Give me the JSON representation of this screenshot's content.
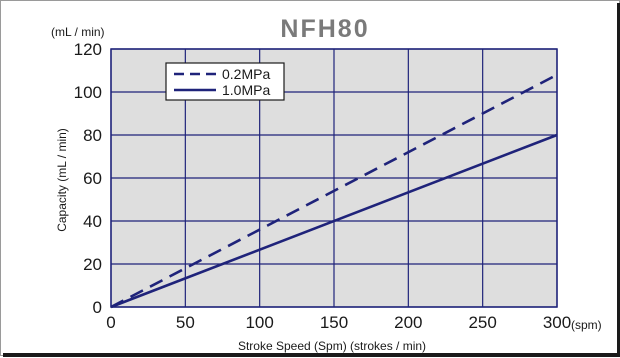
{
  "chart_data": {
    "type": "line",
    "title": "NFH80",
    "xlabel": "Stroke Speed (Spm) (strokes / min)",
    "ylabel": "Capacity (mL / min)",
    "x_unit": "(spm)",
    "y_unit": "(mL / min)",
    "xlim": [
      0,
      300
    ],
    "ylim": [
      0,
      120
    ],
    "x_ticks": [
      0,
      50,
      100,
      150,
      200,
      250,
      300
    ],
    "y_ticks": [
      0,
      20,
      40,
      60,
      80,
      100,
      120
    ],
    "grid": true,
    "legend_position": "top-left",
    "series": [
      {
        "name": "0.2MPa",
        "style": "dashed",
        "color": "#1f237a",
        "x": [
          0,
          300
        ],
        "y": [
          0,
          108
        ]
      },
      {
        "name": "1.0MPa",
        "style": "solid",
        "color": "#1f237a",
        "x": [
          0,
          300
        ],
        "y": [
          0,
          80
        ]
      }
    ]
  },
  "colors": {
    "plot_bg": "#dedede",
    "grid": "#1f237a",
    "line": "#1f237a",
    "title": "#7a7a7a"
  }
}
